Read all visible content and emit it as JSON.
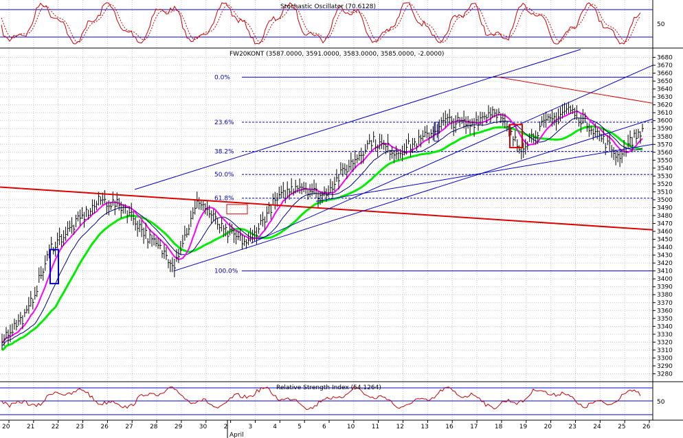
{
  "colors": {
    "background": "#ffffff",
    "grid": "#c8c8c8",
    "axis_text": "#000000",
    "bar": "#000000",
    "stoch_k": "#cc0000",
    "stoch_d": "#cc0000",
    "rsi": "#cc0000",
    "ma_fast": "#ff00ff",
    "ma_mid": "#000080",
    "ma_slow": "#00ee00",
    "channel": "#0000cc",
    "fib": "#0000cc",
    "red_trend": "#dd0000",
    "marker_box": "#0000cc",
    "marker_box_red": "#dd0000"
  },
  "stochastic": {
    "title": "Stochastic Oscillator (70.6128)",
    "tick_label": "50"
  },
  "price": {
    "title": "FW20KONT (3587.0000, 3591.0000, 3583.0000, 3585.0000, -2.0000)",
    "ylim": [
      3270,
      3690
    ],
    "y_ticks": [
      3280,
      3290,
      3300,
      3310,
      3320,
      3330,
      3340,
      3350,
      3360,
      3370,
      3380,
      3390,
      3400,
      3410,
      3420,
      3430,
      3440,
      3450,
      3460,
      3470,
      3480,
      3490,
      3500,
      3510,
      3520,
      3530,
      3540,
      3550,
      3560,
      3570,
      3580,
      3590,
      3600,
      3610,
      3620,
      3630,
      3640,
      3650,
      3660,
      3670,
      3680
    ]
  },
  "rsi": {
    "title": "Relative Strength Index (54.1264)",
    "tick_label": "50"
  },
  "x_axis": {
    "labels": [
      "20",
      "21",
      "22",
      "23",
      "26",
      "27",
      "28",
      "29",
      "30",
      "2",
      "3",
      "4",
      "5",
      "6",
      "10",
      "11",
      "12",
      "13",
      "16",
      "17",
      "18",
      "19",
      "20",
      "23",
      "24",
      "25",
      "26"
    ],
    "month_label": "April"
  },
  "chart_data": {
    "type": "bar",
    "title": "FW20KONT (3587.0000, 3591.0000, 3583.0000, 3585.0000, -2.0000)",
    "categories": [
      "20",
      "21",
      "22",
      "23",
      "26",
      "27",
      "28",
      "29",
      "30",
      "2",
      "3",
      "4",
      "5",
      "6",
      "10",
      "11",
      "12",
      "13",
      "16",
      "17",
      "18",
      "19",
      "20",
      "23",
      "24",
      "25",
      "26"
    ],
    "series": [
      {
        "values": [
          3325,
          3355,
          3440,
          3470,
          3500,
          3490,
          3450,
          3420,
          3500,
          3460,
          3445,
          3495,
          3520,
          3505,
          3540,
          3575,
          3560,
          3575,
          3600,
          3595,
          3615,
          3565,
          3595,
          3615,
          3590,
          3555,
          3590
        ]
      }
    ],
    "ylim": [
      3270,
      3690
    ],
    "fib_levels": [
      {
        "label": "0.0%",
        "value": 3655
      },
      {
        "label": "23.6%",
        "value": 3598
      },
      {
        "label": "38.2%",
        "value": 3561
      },
      {
        "label": "50.0%",
        "value": 3532
      },
      {
        "label": "61.8%",
        "value": 3502
      },
      {
        "label": "100.0%",
        "value": 3410
      }
    ],
    "grid": true
  }
}
